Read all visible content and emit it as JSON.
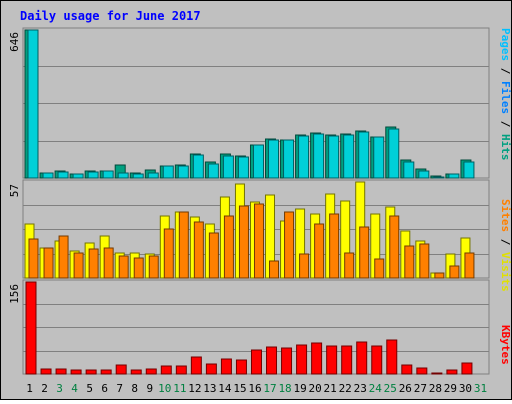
{
  "chart_data": [
    {
      "type": "bar",
      "title": "Daily usage for June 2017",
      "panel": "pages-files-hits",
      "y_max_label": "646",
      "ylim": [
        0,
        646
      ],
      "grid": true,
      "legend": {
        "placement": "right",
        "items": [
          "Pages",
          "Files",
          "Hits"
        ]
      },
      "categories": [
        "1",
        "2",
        "3",
        "4",
        "5",
        "6",
        "7",
        "8",
        "9",
        "10",
        "11",
        "12",
        "13",
        "14",
        "15",
        "16",
        "17",
        "18",
        "19",
        "20",
        "21",
        "22",
        "23",
        "24",
        "25",
        "26",
        "27",
        "28",
        "29",
        "30",
        "31"
      ],
      "series": [
        {
          "name": "Hits",
          "values": [
            646,
            23,
            31,
            19,
            29,
            31,
            57,
            21,
            34,
            54,
            56,
            106,
            72,
            106,
            98,
            146,
            169,
            167,
            189,
            196,
            188,
            192,
            207,
            181,
            223,
            78,
            40,
            7,
            18,
            77,
            0
          ]
        },
        {
          "name": "Files",
          "values": [
            646,
            23,
            28,
            19,
            25,
            29,
            21,
            18,
            24,
            53,
            54,
            101,
            62,
            97,
            93,
            145,
            167,
            164,
            185,
            192,
            182,
            189,
            200,
            177,
            215,
            71,
            32,
            5,
            18,
            72,
            0
          ]
        },
        {
          "name": "Pages",
          "values": [
            0,
            0,
            0,
            0,
            0,
            0,
            0,
            0,
            0,
            0,
            0,
            0,
            0,
            0,
            0,
            0,
            0,
            0,
            0,
            0,
            0,
            0,
            0,
            0,
            0,
            0,
            0,
            0,
            0,
            0,
            0
          ]
        }
      ],
      "colors": {
        "Pages": "#00c0ff",
        "Files": "#00d0d8",
        "Hits": "#00a080"
      }
    },
    {
      "type": "bar",
      "panel": "visits-sites",
      "y_max_label": "57",
      "ylim": [
        0,
        57
      ],
      "grid": true,
      "legend": {
        "placement": "right",
        "items": [
          "Sites",
          "Visits"
        ]
      },
      "categories": [
        "1",
        "2",
        "3",
        "4",
        "5",
        "6",
        "7",
        "8",
        "9",
        "10",
        "11",
        "12",
        "13",
        "14",
        "15",
        "16",
        "17",
        "18",
        "19",
        "20",
        "21",
        "22",
        "23",
        "24",
        "25",
        "26",
        "27",
        "28",
        "29",
        "30",
        "31"
      ],
      "series": [
        {
          "name": "Visits",
          "values": [
            32,
            18,
            22,
            16,
            21,
            25,
            15,
            15,
            14,
            37,
            39,
            36,
            32,
            48,
            56,
            45,
            49,
            34,
            41,
            38,
            50,
            46,
            57,
            38,
            42,
            28,
            22,
            3,
            14,
            24,
            0
          ]
        },
        {
          "name": "Sites",
          "values": [
            23,
            18,
            25,
            15,
            17,
            18,
            13,
            12,
            13,
            29,
            39,
            33,
            27,
            37,
            43,
            44,
            10,
            39,
            14,
            32,
            38,
            15,
            30,
            11,
            37,
            19,
            20,
            3,
            7,
            15,
            0
          ]
        }
      ],
      "colors": {
        "Visits": "#ffff00",
        "Sites": "#ff8000"
      }
    },
    {
      "type": "bar",
      "panel": "kbytes",
      "y_max_label": "156",
      "ylim": [
        0,
        156
      ],
      "grid": true,
      "legend": {
        "placement": "right",
        "items": [
          "KBytes"
        ]
      },
      "categories": [
        "1",
        "2",
        "3",
        "4",
        "5",
        "6",
        "7",
        "8",
        "9",
        "10",
        "11",
        "12",
        "13",
        "14",
        "15",
        "16",
        "17",
        "18",
        "19",
        "20",
        "21",
        "22",
        "23",
        "24",
        "25",
        "26",
        "27",
        "28",
        "29",
        "30",
        "31"
      ],
      "series": [
        {
          "name": "KBytes",
          "values": [
            156,
            8,
            8,
            6,
            6,
            6,
            15,
            6,
            9,
            13,
            14,
            28,
            17,
            25,
            24,
            40,
            45,
            44,
            49,
            53,
            48,
            47,
            54,
            47,
            57,
            16,
            11,
            2,
            6,
            19,
            0
          ]
        }
      ],
      "colors": {
        "KBytes": "#ff0000"
      }
    }
  ],
  "x_labels": {
    "weekend_days": [
      "3",
      "4",
      "10",
      "11",
      "17",
      "18",
      "24",
      "25",
      "31"
    ],
    "weekday_color": "#000000",
    "weekend_color": "#008040"
  },
  "legend_text": {
    "top": [
      {
        "text": "Pages",
        "color": "#00c0ff"
      },
      {
        "text": " / ",
        "color": "#000000"
      },
      {
        "text": "Files",
        "color": "#0080ff"
      },
      {
        "text": " / ",
        "color": "#000000"
      },
      {
        "text": "Hits",
        "color": "#00a080"
      }
    ],
    "middle": [
      {
        "text": "Sites",
        "color": "#ff8000"
      },
      {
        "text": " / ",
        "color": "#000000"
      },
      {
        "text": "Visits",
        "color": "#e0e000"
      }
    ],
    "bottom": [
      {
        "text": "KBytes",
        "color": "#ff0000"
      }
    ]
  },
  "colors": {
    "frame_bg": "#c0c0c0",
    "plot_bg": "#c0c0c0",
    "title": "#0000ff",
    "border": "#808080",
    "grid": "#808080"
  }
}
